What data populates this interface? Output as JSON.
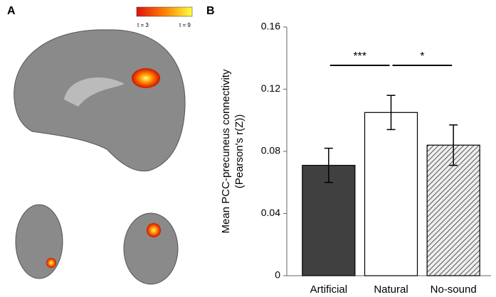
{
  "panel_a": {
    "label": "A",
    "colorbar_min": "t = 3",
    "colorbar_max": "t = 9"
  },
  "chart_data": {
    "type": "bar",
    "panel_label": "B",
    "categories": [
      "Artificial",
      "Natural",
      "No-sound"
    ],
    "values": [
      0.071,
      0.105,
      0.084
    ],
    "errors": [
      0.011,
      0.011,
      0.013
    ],
    "colors": [
      "#404040",
      "#ffffff",
      "#bdbdbd"
    ],
    "hatch": [
      false,
      false,
      true
    ],
    "ylabel": [
      "Mean PCC-precuneus connectivity",
      "(Pearson's r(Z))"
    ],
    "ylim": [
      0,
      0.16
    ],
    "yticks": [
      0,
      0.04,
      0.08,
      0.12,
      0.16
    ],
    "annotations": [
      "***",
      "*"
    ]
  }
}
